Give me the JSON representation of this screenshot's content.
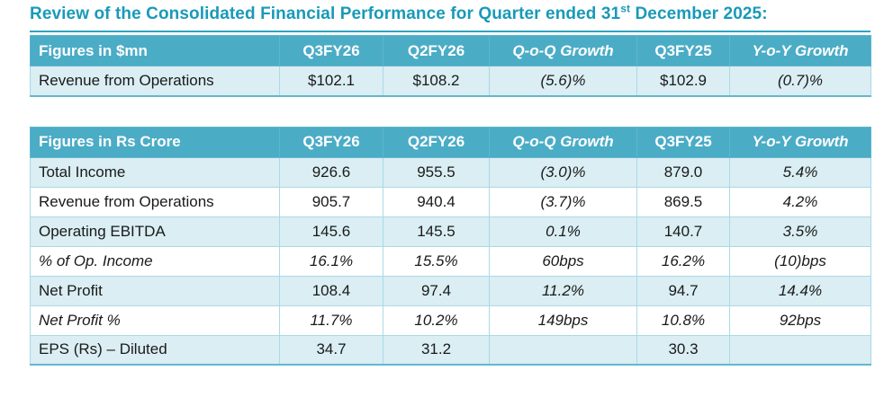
{
  "title": {
    "prefix": "Review of the Consolidated Financial Performance for Quarter ended 31",
    "superscript": "st",
    "suffix": " December 2025:"
  },
  "colors": {
    "title_text": "#189AB8",
    "title_underline": "#2FA3C0",
    "header_bg": "#4BACC6",
    "header_border": "#5FB6CC",
    "cell_border": "#A9DAE6",
    "outer_border": "#63B8CE",
    "alt_row_bg": "#DAEEF3"
  },
  "tables": [
    {
      "name": "usd-summary",
      "headers": [
        "Figures in $mn",
        "Q3FY26",
        "Q2FY26",
        "Q-o-Q Growth",
        "Q3FY25",
        "Y-o-Y Growth"
      ],
      "rows": [
        {
          "cells": [
            "Revenue from Operations",
            "$102.1",
            "$108.2",
            "(5.6)%",
            "$102.9",
            "(0.7)%"
          ],
          "italic": false
        }
      ]
    },
    {
      "name": "rs-crore-summary",
      "headers": [
        "Figures in Rs Crore",
        "Q3FY26",
        "Q2FY26",
        "Q-o-Q Growth",
        "Q3FY25",
        "Y-o-Y Growth"
      ],
      "rows": [
        {
          "cells": [
            "Total Income",
            "926.6",
            "955.5",
            "(3.0)%",
            "879.0",
            "5.4%"
          ],
          "italic": false
        },
        {
          "cells": [
            "Revenue from Operations",
            "905.7",
            "940.4",
            "(3.7)%",
            "869.5",
            "4.2%"
          ],
          "italic": false
        },
        {
          "cells": [
            "Operating EBITDA",
            "145.6",
            "145.5",
            "0.1%",
            "140.7",
            "3.5%"
          ],
          "italic": false
        },
        {
          "cells": [
            "% of Op. Income",
            "16.1%",
            "15.5%",
            "60bps",
            "16.2%",
            "(10)bps"
          ],
          "italic": true
        },
        {
          "cells": [
            "Net Profit",
            "108.4",
            "97.4",
            "11.2%",
            "94.7",
            "14.4%"
          ],
          "italic": false
        },
        {
          "cells": [
            "Net Profit %",
            "11.7%",
            "10.2%",
            "149bps",
            "10.8%",
            "92bps"
          ],
          "italic": true
        },
        {
          "cells": [
            "EPS (Rs) – Diluted",
            "34.7",
            "31.2",
            "",
            "30.3",
            ""
          ],
          "italic": false
        }
      ]
    }
  ]
}
